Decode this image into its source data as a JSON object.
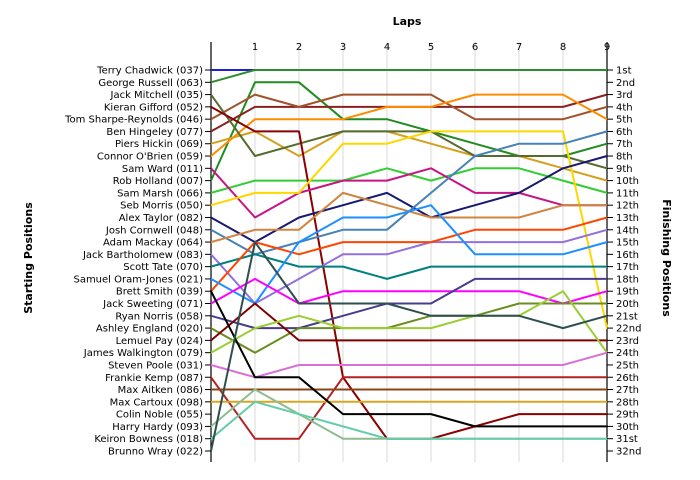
{
  "chart_data": {
    "type": "line",
    "title": "",
    "xlabel": "Laps",
    "ylabel_left": "Starting Positions",
    "ylabel_right": "Finishing Positions",
    "x_ticks": [
      "1",
      "2",
      "3",
      "4",
      "5",
      "6",
      "7",
      "8",
      "9"
    ],
    "xlim": [
      0,
      9
    ],
    "ylim": [
      1,
      32
    ],
    "y_inverted": true,
    "grid": "vertical",
    "drivers": [
      "Terry Chadwick (037)",
      "George Russell (063)",
      "Jack Mitchell (035)",
      "Kieran Gifford (052)",
      "Tom Sharpe-Reynolds (046)",
      "Ben Hingeley (077)",
      "Piers Hickin (069)",
      "Connor O'Brien (059)",
      "Sam Ward (011)",
      "Rob Holland (007)",
      "Sam Marsh (066)",
      "Seb Morris (050)",
      "Alex Taylor (082)",
      "Josh Cornwell (048)",
      "Adam Mackay (064)",
      "Jack Bartholomew (083)",
      "Scott Tate (070)",
      "Samuel Oram-Jones (021)",
      "Brett Smith (039)",
      "Jack Sweeting (071)",
      "Ryan Norris (058)",
      "Ashley England (020)",
      "Lemuel Pay (024)",
      "James Walkington (079)",
      "Steven Poole (031)",
      "Frankie Kemp (087)",
      "Max Aitken (086)",
      "Max Cartoux (098)",
      "Colin Noble (055)",
      "Harry Hardy (093)",
      "Keiron Bowness (018)",
      "Brunno Wray (022)"
    ],
    "finishing_labels": [
      "1st",
      "2nd",
      "3rd",
      "4th",
      "5th",
      "6th",
      "7th",
      "8th",
      "9th",
      "10th",
      "11th",
      "12th",
      "13th",
      "14th",
      "15th",
      "16th",
      "17th",
      "18th",
      "19th",
      "20th",
      "21st",
      "22nd",
      "23rd",
      "24th",
      "25th",
      "26th",
      "27th",
      "28th",
      "29th",
      "30th",
      "31st",
      "32nd"
    ],
    "series": [
      {
        "color": "#1f1fd6",
        "values": [
          1,
          1,
          1,
          1,
          1,
          1,
          1,
          1,
          1,
          1
        ]
      },
      {
        "color": "#2e8b2e",
        "values": [
          2,
          1,
          1,
          1,
          1,
          1,
          1,
          1,
          1,
          1
        ]
      },
      {
        "color": "#228b22",
        "values": [
          10,
          2,
          2,
          5,
          5,
          6,
          7,
          8,
          8,
          7
        ]
      },
      {
        "color": "#8b2020",
        "values": [
          6,
          4,
          4,
          4,
          4,
          4,
          4,
          4,
          4,
          3
        ]
      },
      {
        "color": "#a0522d",
        "values": [
          5,
          3,
          4,
          3,
          3,
          3,
          5,
          5,
          5,
          4
        ]
      },
      {
        "color": "#d4a020",
        "values": [
          7,
          6,
          8,
          6,
          6,
          7,
          8,
          8,
          9,
          10
        ]
      },
      {
        "color": "#ff8c00",
        "values": [
          8,
          5,
          5,
          5,
          4,
          4,
          3,
          3,
          3,
          5
        ]
      },
      {
        "color": "#556b2f",
        "values": [
          3,
          8,
          7,
          6,
          6,
          6,
          8,
          8,
          8,
          9
        ]
      },
      {
        "color": "#32cd32",
        "values": [
          11,
          10,
          10,
          10,
          9,
          10,
          9,
          9,
          10,
          11
        ]
      },
      {
        "color": "#8b0000",
        "values": [
          4,
          6,
          6,
          26,
          31,
          31,
          30,
          29,
          29,
          29
        ]
      },
      {
        "color": "#c71585",
        "values": [
          9,
          13,
          11,
          10,
          10,
          9,
          11,
          11,
          12,
          12
        ]
      },
      {
        "color": "#ffd700",
        "values": [
          12,
          11,
          11,
          7,
          7,
          6,
          6,
          6,
          6,
          22
        ]
      },
      {
        "color": "#191970",
        "values": [
          13,
          15,
          13,
          12,
          11,
          13,
          12,
          11,
          9,
          8
        ]
      },
      {
        "color": "#4682b4",
        "values": [
          14,
          16,
          15,
          14,
          14,
          11,
          8,
          7,
          7,
          6
        ]
      },
      {
        "color": "#cd853f",
        "values": [
          15,
          14,
          14,
          11,
          12,
          13,
          13,
          13,
          12,
          12
        ]
      },
      {
        "color": "#9370db",
        "values": [
          16,
          20,
          18,
          16,
          16,
          15,
          15,
          15,
          15,
          14
        ]
      },
      {
        "color": "#008080",
        "values": [
          17,
          16,
          17,
          17,
          18,
          17,
          17,
          17,
          17,
          17
        ]
      },
      {
        "color": "#ff4500",
        "values": [
          19,
          15,
          16,
          15,
          15,
          15,
          14,
          14,
          14,
          13
        ]
      },
      {
        "color": "#1e90ff",
        "values": [
          18,
          20,
          15,
          13,
          13,
          12,
          16,
          16,
          16,
          15
        ]
      },
      {
        "color": "#ff00ff",
        "values": [
          20,
          18,
          20,
          19,
          19,
          19,
          19,
          19,
          20,
          19
        ]
      },
      {
        "color": "#483d8b",
        "values": [
          21,
          22,
          22,
          21,
          20,
          20,
          18,
          18,
          18,
          18
        ]
      },
      {
        "color": "#6b8e23",
        "values": [
          22,
          24,
          22,
          22,
          22,
          21,
          21,
          20,
          20,
          20
        ]
      },
      {
        "color": "#800000",
        "values": [
          23,
          20,
          23,
          23,
          23,
          23,
          23,
          23,
          23,
          23
        ]
      },
      {
        "color": "#9acd32",
        "values": [
          24,
          22,
          21,
          22,
          22,
          22,
          21,
          21,
          19,
          24
        ]
      },
      {
        "color": "#da70d6",
        "values": [
          25,
          26,
          25,
          25,
          25,
          25,
          25,
          25,
          25,
          24
        ]
      },
      {
        "color": "#b22222",
        "values": [
          26,
          31,
          31,
          26,
          26,
          26,
          26,
          26,
          26,
          26
        ]
      },
      {
        "color": "#8b4513",
        "values": [
          27,
          27,
          27,
          27,
          27,
          27,
          27,
          27,
          27,
          27
        ]
      },
      {
        "color": "#daa520",
        "values": [
          28,
          28,
          28,
          28,
          28,
          28,
          28,
          28,
          28,
          28
        ]
      },
      {
        "color": "#000000",
        "values": [
          19,
          26,
          26,
          29,
          29,
          29,
          30,
          30,
          30,
          30
        ]
      },
      {
        "color": "#8fbc8f",
        "values": [
          30,
          27,
          29,
          31,
          31,
          31,
          31,
          31,
          31,
          31
        ]
      },
      {
        "color": "#66cdaa",
        "values": [
          31,
          28,
          29,
          30,
          31,
          31,
          31,
          31,
          31,
          31
        ]
      },
      {
        "color": "#2f4f4f",
        "values": [
          32,
          15,
          20,
          20,
          20,
          21,
          21,
          21,
          22,
          21
        ]
      }
    ]
  }
}
